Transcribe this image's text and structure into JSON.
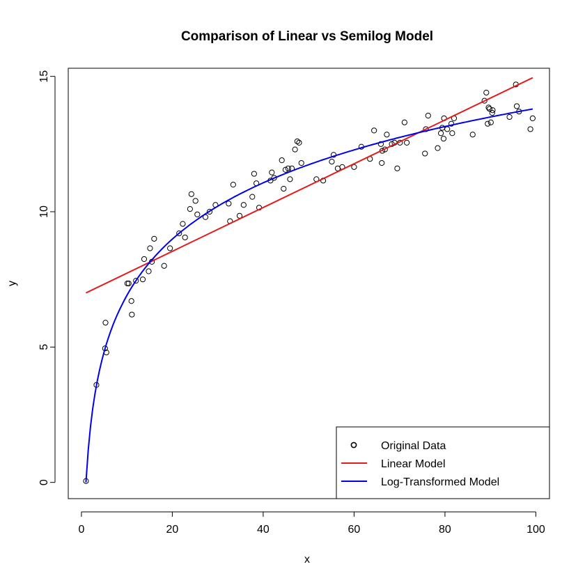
{
  "chart_data": {
    "type": "scatter",
    "title": "Comparison of Linear vs Semilog Model",
    "xlabel": "x",
    "ylabel": "y",
    "xlim": [
      -2.9,
      103
    ],
    "ylim": [
      -0.6,
      15.3
    ],
    "xticks": [
      0,
      20,
      40,
      60,
      80,
      100
    ],
    "yticks": [
      0,
      5,
      10,
      15
    ],
    "grid": false,
    "legend_position": "bottom-right",
    "series": [
      {
        "name": "Original Data",
        "kind": "points",
        "color": "#000000",
        "points": [
          [
            1,
            0.05
          ],
          [
            3.3,
            3.6
          ],
          [
            5.2,
            4.95
          ],
          [
            5.3,
            5.9
          ],
          [
            5.5,
            4.8
          ],
          [
            10.1,
            7.35
          ],
          [
            10.4,
            7.35
          ],
          [
            11,
            6.7
          ],
          [
            11.1,
            6.2
          ],
          [
            12,
            7.45
          ],
          [
            13.5,
            7.5
          ],
          [
            13.8,
            8.25
          ],
          [
            14.8,
            7.8
          ],
          [
            15.1,
            8.65
          ],
          [
            15.5,
            8.15
          ],
          [
            16,
            9.0
          ],
          [
            18.2,
            8.0
          ],
          [
            19.5,
            8.65
          ],
          [
            21.5,
            9.2
          ],
          [
            22.3,
            9.55
          ],
          [
            22.8,
            9.05
          ],
          [
            23.9,
            10.1
          ],
          [
            24.2,
            10.65
          ],
          [
            25.1,
            10.4
          ],
          [
            25.5,
            9.9
          ],
          [
            27.3,
            9.8
          ],
          [
            28.2,
            10.0
          ],
          [
            29.5,
            10.25
          ],
          [
            32.4,
            10.3
          ],
          [
            32.7,
            9.65
          ],
          [
            33.4,
            11.0
          ],
          [
            34.8,
            9.85
          ],
          [
            35.7,
            10.25
          ],
          [
            37.6,
            10.55
          ],
          [
            38,
            11.4
          ],
          [
            38.5,
            11.05
          ],
          [
            39.1,
            10.15
          ],
          [
            41.6,
            11.15
          ],
          [
            41.9,
            11.45
          ],
          [
            42.4,
            11.25
          ],
          [
            44.1,
            11.9
          ],
          [
            44.5,
            10.85
          ],
          [
            44.9,
            11.55
          ],
          [
            45.5,
            11.6
          ],
          [
            45.9,
            11.2
          ],
          [
            46.3,
            11.6
          ],
          [
            47,
            12.3
          ],
          [
            47.5,
            12.6
          ],
          [
            47.9,
            12.55
          ],
          [
            48.4,
            11.8
          ],
          [
            51.7,
            11.2
          ],
          [
            53.2,
            11.15
          ],
          [
            55.1,
            11.85
          ],
          [
            55.5,
            12.1
          ],
          [
            56.4,
            11.6
          ],
          [
            57.4,
            11.65
          ],
          [
            60,
            11.65
          ],
          [
            61.6,
            12.4
          ],
          [
            63.5,
            11.95
          ],
          [
            64.4,
            13.0
          ],
          [
            65.9,
            12.5
          ],
          [
            66.1,
            11.8
          ],
          [
            66.2,
            12.25
          ],
          [
            66.8,
            12.3
          ],
          [
            67.2,
            12.85
          ],
          [
            68.3,
            12.5
          ],
          [
            68.9,
            12.55
          ],
          [
            69.5,
            11.6
          ],
          [
            70.1,
            12.55
          ],
          [
            71.1,
            13.3
          ],
          [
            71.6,
            12.55
          ],
          [
            75.6,
            12.15
          ],
          [
            75.8,
            13.05
          ],
          [
            76.3,
            13.55
          ],
          [
            78.4,
            12.35
          ],
          [
            79.1,
            12.9
          ],
          [
            79.4,
            13.1
          ],
          [
            79.7,
            12.7
          ],
          [
            79.8,
            13.45
          ],
          [
            80.5,
            13.05
          ],
          [
            81.4,
            13.25
          ],
          [
            81.6,
            12.9
          ],
          [
            82,
            13.45
          ],
          [
            86.1,
            12.85
          ],
          [
            88.7,
            14.1
          ],
          [
            89.1,
            14.4
          ],
          [
            89.4,
            13.25
          ],
          [
            89.6,
            13.85
          ],
          [
            89.8,
            13.8
          ],
          [
            90.1,
            13.3
          ],
          [
            90.4,
            13.65
          ],
          [
            90.5,
            13.75
          ],
          [
            94.2,
            13.5
          ],
          [
            95.6,
            14.7
          ],
          [
            95.8,
            13.9
          ],
          [
            96.3,
            13.7
          ],
          [
            98.8,
            13.05
          ],
          [
            99.3,
            13.45
          ]
        ]
      },
      {
        "name": "Linear Model",
        "kind": "line",
        "color": "#e41a1c",
        "points": [
          [
            1,
            7.0
          ],
          [
            99.3,
            14.95
          ]
        ]
      },
      {
        "name": "Log-Transformed Model",
        "kind": "curve",
        "color": "#0000ee",
        "curve": {
          "intercept": 0.0,
          "log_coefficient": 3.0,
          "x_from": 1,
          "x_to": 99.3
        }
      }
    ]
  }
}
